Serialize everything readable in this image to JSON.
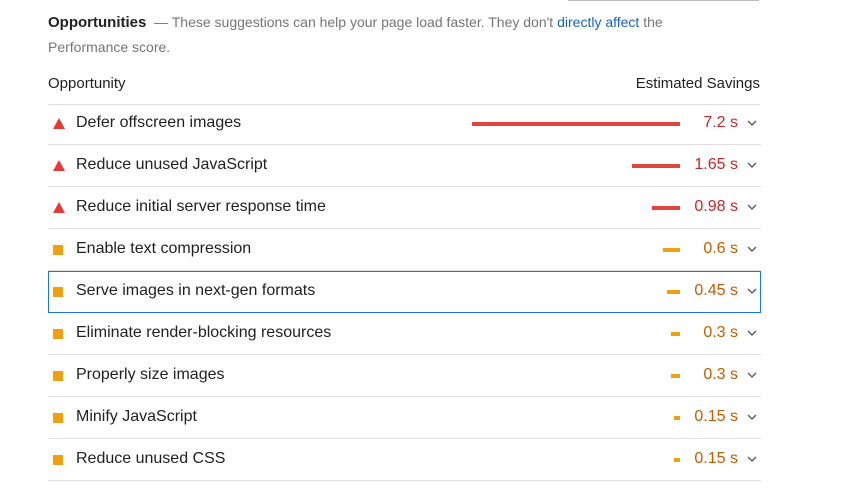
{
  "section": {
    "title": "Opportunities",
    "description_prefix": "— These suggestions can help your page load faster. They don't",
    "description_link": "directly affect",
    "description_suffix_1": "the",
    "description_suffix_2": "Performance score."
  },
  "table": {
    "col_opportunity": "Opportunity",
    "col_savings": "Estimated Savings",
    "bar_max_value": 7.2,
    "colors": {
      "fail": "#e0463d",
      "average": "#ef9f0f",
      "selected_outline": "#1a73e8",
      "link": "#1565c0"
    },
    "items": [
      {
        "label": "Defer offscreen images",
        "savings": "7.2 s",
        "seconds": 7.2,
        "rating": "fail",
        "icon": "warning-triangle-icon"
      },
      {
        "label": "Reduce unused JavaScript",
        "savings": "1.65 s",
        "seconds": 1.65,
        "rating": "fail",
        "icon": "warning-triangle-icon"
      },
      {
        "label": "Reduce initial server response time",
        "savings": "0.98 s",
        "seconds": 0.98,
        "rating": "fail",
        "icon": "warning-triangle-icon"
      },
      {
        "label": "Enable text compression",
        "savings": "0.6 s",
        "seconds": 0.6,
        "rating": "average",
        "icon": "orange-square-icon"
      },
      {
        "label": "Serve images in next-gen formats",
        "savings": "0.45 s",
        "seconds": 0.45,
        "rating": "average",
        "icon": "orange-square-icon",
        "selected": true
      },
      {
        "label": "Eliminate render-blocking resources",
        "savings": "0.3 s",
        "seconds": 0.3,
        "rating": "average",
        "icon": "orange-square-icon"
      },
      {
        "label": "Properly size images",
        "savings": "0.3 s",
        "seconds": 0.3,
        "rating": "average",
        "icon": "orange-square-icon"
      },
      {
        "label": "Minify JavaScript",
        "savings": "0.15 s",
        "seconds": 0.15,
        "rating": "average",
        "icon": "orange-square-icon"
      },
      {
        "label": "Reduce unused CSS",
        "savings": "0.15 s",
        "seconds": 0.15,
        "rating": "average",
        "icon": "orange-square-icon"
      }
    ]
  }
}
